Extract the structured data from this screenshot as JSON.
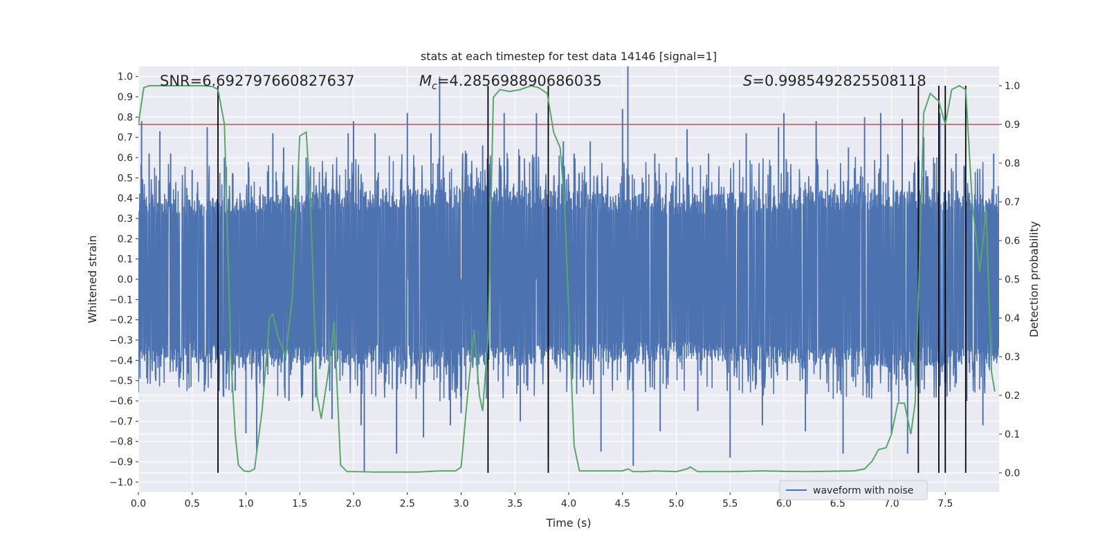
{
  "chart_data": {
    "type": "line",
    "title": "stats at each timestep for test data 14146 [signal=1]",
    "xlabel": "Time (s)",
    "ylabel": "Whitened strain",
    "y2label": "Detection probability",
    "xlim": [
      0.0,
      8.0
    ],
    "ylim": [
      -1.05,
      1.05
    ],
    "y2lim": [
      -0.05,
      1.05
    ],
    "xticks": [
      0.0,
      0.5,
      1.0,
      1.5,
      2.0,
      2.5,
      3.0,
      3.5,
      4.0,
      4.5,
      5.0,
      5.5,
      6.0,
      6.5,
      7.0,
      7.5
    ],
    "yticks": [
      1.0,
      0.9,
      0.8,
      0.7,
      0.6,
      0.5,
      0.4,
      0.3,
      0.2,
      0.1,
      0.0,
      -0.1,
      -0.2,
      -0.3,
      -0.4,
      -0.5,
      -0.6,
      -0.7,
      -0.8,
      -0.9,
      -1.0
    ],
    "y2ticks": [
      1.0,
      0.9,
      0.8,
      0.7,
      0.6,
      0.5,
      0.4,
      0.3,
      0.2,
      0.1,
      0.0
    ],
    "xtick_labels": [
      "0.0",
      "0.5",
      "1.0",
      "1.5",
      "2.0",
      "2.5",
      "3.0",
      "3.5",
      "4.0",
      "4.5",
      "5.0",
      "5.5",
      "6.0",
      "6.5",
      "7.0",
      "7.5"
    ],
    "ytick_labels": [
      "1.0",
      "0.9",
      "0.8",
      "0.7",
      "0.6",
      "0.5",
      "0.4",
      "0.3",
      "0.2",
      "0.1",
      "0.0",
      "−0.1",
      "−0.2",
      "−0.3",
      "−0.4",
      "−0.5",
      "−0.6",
      "−0.7",
      "−0.8",
      "−0.9",
      "−1.0"
    ],
    "y2tick_labels": [
      "1.0",
      "0.9",
      "0.8",
      "0.7",
      "0.6",
      "0.5",
      "0.4",
      "0.3",
      "0.2",
      "0.1",
      "0.0"
    ],
    "grid": true,
    "legend_placement": "lower-right",
    "annotations": {
      "snr": "SNR=6.692797660827637",
      "mc_symbol": "M",
      "mc_sub": "c",
      "mc_value": "=4.285698890686035",
      "s_symbol": "S",
      "s_value": "=0.9985492825508118"
    },
    "threshold": {
      "y2": 0.9,
      "color": "#c44e52"
    },
    "vertical_lines": [
      0.74,
      3.25,
      3.81,
      7.25,
      7.44,
      7.5,
      7.69
    ],
    "series": [
      {
        "name": "waveform with noise",
        "color": "#4c72b0",
        "axis": "left",
        "kind": "noisy-waveform",
        "envelope_top": [
          [
            0.0,
            0.42
          ],
          [
            0.5,
            0.38
          ],
          [
            1.0,
            0.4
          ],
          [
            2.0,
            0.42
          ],
          [
            3.0,
            0.44
          ],
          [
            3.4,
            0.45
          ],
          [
            4.0,
            0.42
          ],
          [
            5.0,
            0.4
          ],
          [
            6.0,
            0.42
          ],
          [
            7.0,
            0.43
          ],
          [
            8.0,
            0.4
          ]
        ],
        "envelope_bottom": [
          [
            0.0,
            -0.4
          ],
          [
            0.5,
            -0.38
          ],
          [
            1.0,
            -0.42
          ],
          [
            2.0,
            -0.4
          ],
          [
            3.0,
            -0.42
          ],
          [
            4.0,
            -0.4
          ],
          [
            5.0,
            -0.38
          ],
          [
            6.0,
            -0.4
          ],
          [
            7.0,
            -0.42
          ],
          [
            8.0,
            -0.4
          ]
        ],
        "peaks": [
          [
            0.03,
            0.78
          ],
          [
            0.1,
            0.62
          ],
          [
            0.2,
            0.73
          ],
          [
            0.3,
            0.62
          ],
          [
            0.5,
            0.54
          ],
          [
            0.64,
            0.75
          ],
          [
            0.8,
            0.6
          ],
          [
            0.9,
            -0.55
          ],
          [
            1.0,
            -0.76
          ],
          [
            1.1,
            -0.85
          ],
          [
            1.25,
            0.72
          ],
          [
            1.35,
            0.65
          ],
          [
            1.4,
            -0.6
          ],
          [
            1.56,
            0.6
          ],
          [
            1.62,
            -0.65
          ],
          [
            1.8,
            -0.69
          ],
          [
            1.95,
            0.72
          ],
          [
            2.0,
            0.78
          ],
          [
            2.07,
            -0.72
          ],
          [
            2.1,
            -0.95
          ],
          [
            2.2,
            0.72
          ],
          [
            2.4,
            -0.86
          ],
          [
            2.5,
            0.82
          ],
          [
            2.65,
            -0.78
          ],
          [
            2.72,
            0.72
          ],
          [
            2.8,
            1.0
          ],
          [
            2.9,
            -0.72
          ],
          [
            3.0,
            -0.66
          ],
          [
            3.05,
            0.62
          ],
          [
            3.2,
            0.66
          ],
          [
            3.4,
            0.82
          ],
          [
            3.55,
            -0.7
          ],
          [
            3.7,
            0.82
          ],
          [
            3.81,
            -0.88
          ],
          [
            3.95,
            0.68
          ],
          [
            4.05,
            0.62
          ],
          [
            4.2,
            0.68
          ],
          [
            4.3,
            -0.85
          ],
          [
            4.5,
            0.84
          ],
          [
            4.55,
            1.08
          ],
          [
            4.6,
            -0.92
          ],
          [
            4.8,
            0.62
          ],
          [
            4.85,
            -0.75
          ],
          [
            5.0,
            0.6
          ],
          [
            5.1,
            0.74
          ],
          [
            5.2,
            -0.65
          ],
          [
            5.3,
            0.62
          ],
          [
            5.5,
            -0.88
          ],
          [
            5.65,
            0.72
          ],
          [
            5.8,
            -0.72
          ],
          [
            5.95,
            0.75
          ],
          [
            6.0,
            0.82
          ],
          [
            6.2,
            -0.75
          ],
          [
            6.3,
            0.78
          ],
          [
            6.55,
            -0.86
          ],
          [
            6.6,
            0.65
          ],
          [
            6.75,
            0.8
          ],
          [
            6.9,
            0.82
          ],
          [
            7.0,
            -0.76
          ],
          [
            7.1,
            0.79
          ],
          [
            7.15,
            -0.86
          ],
          [
            7.3,
            0.7
          ],
          [
            7.45,
            0.82
          ],
          [
            7.5,
            -0.7
          ],
          [
            7.6,
            0.62
          ],
          [
            7.7,
            -0.6
          ],
          [
            7.85,
            -0.72
          ],
          [
            7.95,
            0.62
          ]
        ]
      },
      {
        "name": "",
        "color": "#55a868",
        "axis": "right",
        "kind": "line",
        "points": [
          [
            0.0,
            0.9
          ],
          [
            0.05,
            0.995
          ],
          [
            0.1,
            1.0
          ],
          [
            0.6,
            1.0
          ],
          [
            0.69,
            0.998
          ],
          [
            0.74,
            0.99
          ],
          [
            0.8,
            0.9
          ],
          [
            0.86,
            0.3
          ],
          [
            0.9,
            0.1
          ],
          [
            0.93,
            0.02
          ],
          [
            0.98,
            0.005
          ],
          [
            1.03,
            0.003
          ],
          [
            1.08,
            0.01
          ],
          [
            1.15,
            0.16
          ],
          [
            1.22,
            0.4
          ],
          [
            1.25,
            0.41
          ],
          [
            1.3,
            0.35
          ],
          [
            1.37,
            0.3
          ],
          [
            1.43,
            0.45
          ],
          [
            1.5,
            0.87
          ],
          [
            1.56,
            0.88
          ],
          [
            1.6,
            0.7
          ],
          [
            1.66,
            0.2
          ],
          [
            1.7,
            0.14
          ],
          [
            1.76,
            0.25
          ],
          [
            1.82,
            0.39
          ],
          [
            1.88,
            0.02
          ],
          [
            1.94,
            0.003
          ],
          [
            2.0,
            0.003
          ],
          [
            2.2,
            0.002
          ],
          [
            2.6,
            0.002
          ],
          [
            2.8,
            0.005
          ],
          [
            2.95,
            0.005
          ],
          [
            3.0,
            0.015
          ],
          [
            3.06,
            0.2
          ],
          [
            3.12,
            0.37
          ],
          [
            3.17,
            0.2
          ],
          [
            3.2,
            0.16
          ],
          [
            3.25,
            0.35
          ],
          [
            3.3,
            0.97
          ],
          [
            3.36,
            0.99
          ],
          [
            3.45,
            0.985
          ],
          [
            3.55,
            0.99
          ],
          [
            3.65,
            1.0
          ],
          [
            3.72,
            0.995
          ],
          [
            3.8,
            0.98
          ],
          [
            3.86,
            0.88
          ],
          [
            3.92,
            0.84
          ],
          [
            3.96,
            0.7
          ],
          [
            4.05,
            0.07
          ],
          [
            4.1,
            0.005
          ],
          [
            4.5,
            0.005
          ],
          [
            4.55,
            0.01
          ],
          [
            4.6,
            0.003
          ],
          [
            4.7,
            0.003
          ],
          [
            4.8,
            0.005
          ],
          [
            5.0,
            0.003
          ],
          [
            5.1,
            0.01
          ],
          [
            5.13,
            0.015
          ],
          [
            5.2,
            0.003
          ],
          [
            5.5,
            0.003
          ],
          [
            5.8,
            0.005
          ],
          [
            6.2,
            0.003
          ],
          [
            6.65,
            0.005
          ],
          [
            6.75,
            0.01
          ],
          [
            6.82,
            0.03
          ],
          [
            6.88,
            0.06
          ],
          [
            6.95,
            0.065
          ],
          [
            7.0,
            0.1
          ],
          [
            7.06,
            0.18
          ],
          [
            7.12,
            0.18
          ],
          [
            7.18,
            0.1
          ],
          [
            7.22,
            0.18
          ],
          [
            7.25,
            0.45
          ],
          [
            7.3,
            0.93
          ],
          [
            7.36,
            0.98
          ],
          [
            7.44,
            0.96
          ],
          [
            7.5,
            0.9
          ],
          [
            7.56,
            0.99
          ],
          [
            7.63,
            1.0
          ],
          [
            7.69,
            0.99
          ],
          [
            7.75,
            0.7
          ],
          [
            7.82,
            0.52
          ],
          [
            7.88,
            0.68
          ],
          [
            7.93,
            0.26
          ],
          [
            7.96,
            0.21
          ]
        ]
      }
    ]
  }
}
